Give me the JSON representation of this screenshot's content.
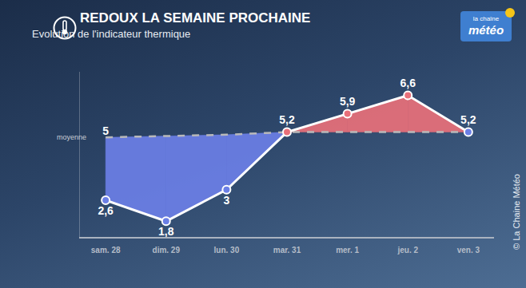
{
  "chart_data": {
    "type": "line",
    "title": "REDOUX LA SEMAINE PROCHAINE",
    "subtitle": "Evolution de l'indicateur thermique",
    "logo": [
      "la chaîne",
      "météo"
    ],
    "credit": "© La Chaine Météo",
    "categories": [
      "sam. 28",
      "dim. 29",
      "lun. 30",
      "mar. 31",
      "mer. 1",
      "jeu. 2",
      "ven. 3"
    ],
    "series": [
      {
        "values": [
          2.6,
          1.8,
          3,
          5.2,
          5.9,
          6.6,
          5.2
        ],
        "value_labels": [
          "2,6",
          "1,8",
          "3",
          "5,2",
          "5,9",
          "6,6",
          "5,2"
        ],
        "color": "#ffffff",
        "colors": [
          "#6b7fe6",
          "#6b7fe6",
          "#6b7fe6",
          "#e8707a",
          "#e8707a",
          "#e8707a",
          "#6b7fe6"
        ],
        "marker": "circle",
        "line_style": "solid"
      },
      {
        "name": "moyenne",
        "values": [
          5,
          5.05,
          5.1,
          5.2,
          5.2,
          5.2,
          5.2
        ],
        "value_labels": [
          "5",
          null,
          null,
          null,
          null,
          null,
          null
        ],
        "color": "#b9b9b9",
        "line_style": "dashed"
      }
    ],
    "ylim": [
      1.2,
      7.5
    ],
    "yticks": [],
    "grid": false,
    "data_labels": true,
    "tick_labels": "x"
  }
}
